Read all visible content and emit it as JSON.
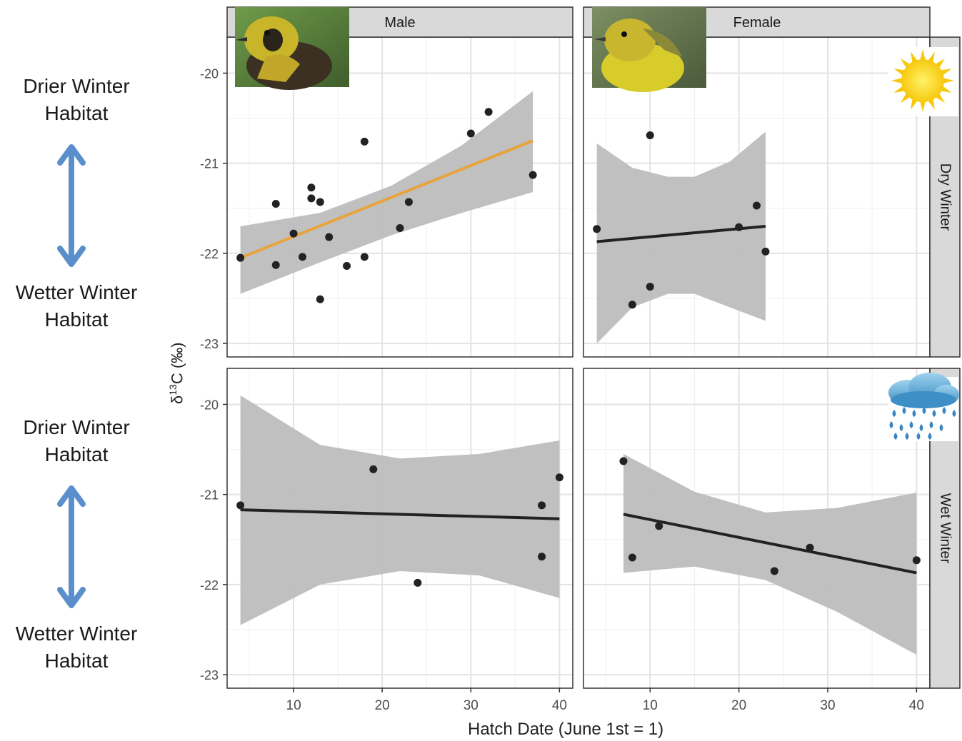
{
  "side_labels": {
    "top": {
      "upper_line1": "Drier Winter",
      "upper_line2": "Habitat",
      "lower_line1": "Wetter Winter",
      "lower_line2": "Habitat"
    },
    "bottom": {
      "upper_line1": "Drier Winter",
      "upper_line2": "Habitat",
      "lower_line1": "Wetter Winter",
      "lower_line2": "Habitat"
    }
  },
  "arrow_color": "#5b8fcc",
  "chart_data": {
    "type": "scatter",
    "xlabel": "Hatch Date (June 1st = 1)",
    "ylabel": "δ13C (‰)",
    "ylabel_parts": {
      "delta": "δ",
      "sup": "13",
      "rest": "C (‰)"
    },
    "xlim": [
      2.5,
      41.5
    ],
    "ylim": [
      -23.15,
      -19.6
    ],
    "x_ticks": [
      10,
      20,
      30,
      40
    ],
    "y_ticks": [
      -20,
      -21,
      -22,
      -23
    ],
    "grid": true,
    "columns": [
      "Male",
      "Female"
    ],
    "rows": [
      "Dry Winter",
      "Wet Winter"
    ],
    "icons": {
      "Dry Winter": "sun-icon",
      "Wet Winter": "rain-cloud-icon"
    },
    "colors": {
      "points": "#222222",
      "band": "#bdbdbd",
      "fit_highlight": "#e8a33a",
      "fit_default": "#222222",
      "strip": "#d9d9d9"
    },
    "panels": [
      {
        "sex": "Male",
        "winter": "Dry Winter",
        "points": [
          [
            4,
            -22.05
          ],
          [
            8,
            -21.45
          ],
          [
            8,
            -22.13
          ],
          [
            10,
            -21.78
          ],
          [
            11,
            -22.04
          ],
          [
            12,
            -21.27
          ],
          [
            12,
            -21.39
          ],
          [
            13,
            -21.43
          ],
          [
            13,
            -22.51
          ],
          [
            14,
            -21.82
          ],
          [
            16,
            -22.14
          ],
          [
            18,
            -20.76
          ],
          [
            18,
            -22.04
          ],
          [
            22,
            -21.72
          ],
          [
            23,
            -21.43
          ],
          [
            30,
            -20.67
          ],
          [
            32,
            -20.43
          ],
          [
            37,
            -21.13
          ]
        ],
        "fit": {
          "x": [
            4,
            37
          ],
          "y": [
            -22.05,
            -20.75
          ],
          "color": "#e8a33a"
        },
        "band": {
          "x": [
            4,
            13,
            21,
            29,
            37
          ],
          "lower": [
            -22.45,
            -22.1,
            -21.8,
            -21.55,
            -21.32
          ],
          "upper": [
            -21.7,
            -21.55,
            -21.25,
            -20.8,
            -20.2
          ]
        }
      },
      {
        "sex": "Female",
        "winter": "Dry Winter",
        "points": [
          [
            4,
            -21.73
          ],
          [
            8,
            -22.57
          ],
          [
            10,
            -20.69
          ],
          [
            10,
            -22.37
          ],
          [
            20,
            -21.71
          ],
          [
            22,
            -21.47
          ],
          [
            23,
            -21.98
          ]
        ],
        "fit": {
          "x": [
            4,
            23
          ],
          "y": [
            -21.87,
            -21.7
          ],
          "color": "#222222"
        },
        "band": {
          "x": [
            4,
            8,
            12,
            15,
            19,
            23
          ],
          "lower": [
            -23.0,
            -22.6,
            -22.45,
            -22.45,
            -22.6,
            -22.75
          ],
          "upper": [
            -20.78,
            -21.05,
            -21.15,
            -21.15,
            -20.98,
            -20.65
          ]
        }
      },
      {
        "sex": "Male",
        "winter": "Wet Winter",
        "points": [
          [
            4,
            -21.12
          ],
          [
            19,
            -20.72
          ],
          [
            24,
            -21.98
          ],
          [
            38,
            -21.12
          ],
          [
            38,
            -21.69
          ],
          [
            40,
            -20.81
          ]
        ],
        "fit": {
          "x": [
            4,
            40
          ],
          "y": [
            -21.17,
            -21.27
          ],
          "color": "#222222"
        },
        "band": {
          "x": [
            4,
            13,
            22,
            31,
            40
          ],
          "lower": [
            -22.45,
            -22.0,
            -21.85,
            -21.9,
            -22.15
          ],
          "upper": [
            -19.9,
            -20.45,
            -20.6,
            -20.55,
            -20.4
          ]
        }
      },
      {
        "sex": "Female",
        "winter": "Wet Winter",
        "points": [
          [
            7,
            -20.63
          ],
          [
            8,
            -21.7
          ],
          [
            11,
            -21.35
          ],
          [
            24,
            -21.85
          ],
          [
            28,
            -21.59
          ],
          [
            40,
            -21.73
          ]
        ],
        "fit": {
          "x": [
            7,
            40
          ],
          "y": [
            -21.22,
            -21.87
          ],
          "color": "#222222"
        },
        "band": {
          "x": [
            7,
            15,
            23,
            31,
            40
          ],
          "lower": [
            -21.87,
            -21.8,
            -21.95,
            -22.3,
            -22.78
          ],
          "upper": [
            -20.55,
            -20.97,
            -21.2,
            -21.15,
            -20.98
          ]
        }
      }
    ]
  }
}
